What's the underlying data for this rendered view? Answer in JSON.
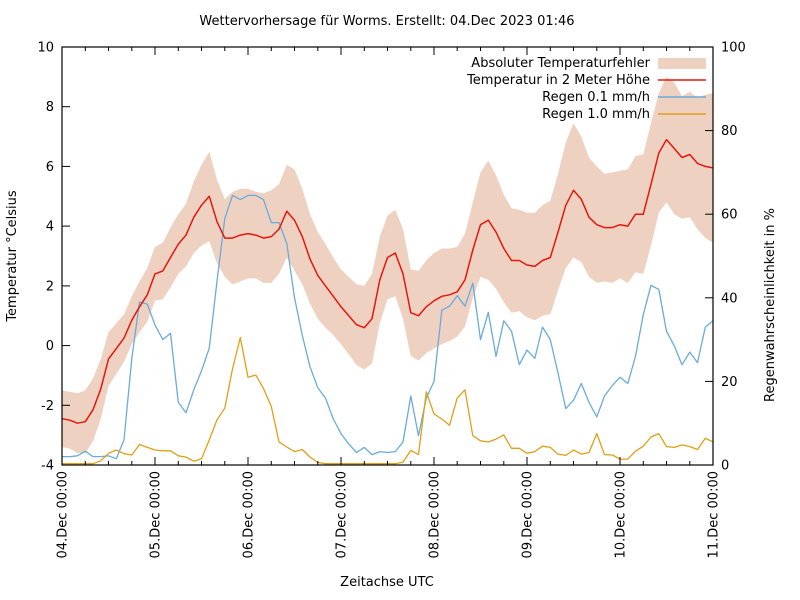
{
  "title": "Wettervorhersage für Worms. Erstellt: 04.Dec 2023 01:46",
  "colors": {
    "band": "#eed1c1",
    "temperature": "#e4180e",
    "rain01": "#6aabdc",
    "rain10": "#dfa018",
    "axis": "#000000",
    "background": "#ffffff"
  },
  "chart_data": {
    "type": "line",
    "title": "Wettervorhersage für Worms. Erstellt: 04.Dec 2023 01:46",
    "xlabel": "Zeitachse UTC",
    "ylabel": "Temperatur °Celsius",
    "y2label": "Regenwahrscheinlichkeit in %",
    "ylim": [
      -4,
      10
    ],
    "y2lim": [
      0,
      100
    ],
    "x_range_hours": [
      0,
      168
    ],
    "x_step_hours": 2,
    "x_major_tick_hours": 24,
    "x_minor_tick_hours": 6,
    "grid": false,
    "legend_position": "top-right-inside",
    "x_tick_labels": [
      "04.Dec 00:00",
      "05.Dec 00:00",
      "06.Dec 00:00",
      "07.Dec 00:00",
      "08.Dec 00:00",
      "09.Dec 00:00",
      "10.Dec 00:00",
      "11.Dec 00:00"
    ],
    "y_ticks": [
      -4,
      -2,
      0,
      2,
      4,
      6,
      8,
      10
    ],
    "y2_ticks": [
      0,
      20,
      40,
      60,
      80,
      100
    ],
    "legend": [
      {
        "label": "Absoluter Temperaturfehler",
        "sample": "band",
        "color": "#eed1c1"
      },
      {
        "label": "Temperatur in 2 Meter Höhe",
        "sample": "line",
        "color": "#e4180e"
      },
      {
        "label": "Regen 0.1 mm/h",
        "sample": "line",
        "color": "#6aabdc"
      },
      {
        "label": "Regen 1.0 mm/h",
        "sample": "line",
        "color": "#dfa018"
      }
    ],
    "series": [
      {
        "name": "Temperatur in 2 Meter Höhe",
        "axis": "y",
        "unit": "°C",
        "values": [
          -2.45,
          -2.5,
          -2.6,
          -2.55,
          -2.15,
          -1.45,
          -0.45,
          -0.1,
          0.25,
          0.85,
          1.3,
          1.7,
          2.4,
          2.5,
          2.95,
          3.4,
          3.7,
          4.3,
          4.7,
          5.0,
          4.15,
          3.6,
          3.6,
          3.7,
          3.75,
          3.7,
          3.6,
          3.65,
          3.9,
          4.5,
          4.2,
          3.65,
          2.9,
          2.35,
          2.0,
          1.65,
          1.3,
          1.0,
          0.7,
          0.6,
          0.9,
          2.2,
          2.95,
          3.1,
          2.4,
          1.1,
          1.0,
          1.3,
          1.5,
          1.65,
          1.7,
          1.8,
          2.2,
          3.2,
          4.05,
          4.2,
          3.8,
          3.25,
          2.85,
          2.85,
          2.7,
          2.65,
          2.85,
          2.95,
          3.8,
          4.7,
          5.2,
          4.9,
          4.3,
          4.05,
          3.95,
          3.95,
          4.05,
          4.0,
          4.4,
          4.4,
          5.4,
          6.45,
          6.9,
          6.6,
          6.3,
          6.4,
          6.1,
          6.0,
          5.95
        ]
      },
      {
        "name": "Absoluter Temperaturfehler (Halbbreite)",
        "axis": "y",
        "unit": "°C",
        "values": [
          0.95,
          0.95,
          1.0,
          1.05,
          1.05,
          1.0,
          0.9,
          0.85,
          0.8,
          0.8,
          0.85,
          0.9,
          0.9,
          0.95,
          1.0,
          1.0,
          1.05,
          1.2,
          1.35,
          1.5,
          1.4,
          1.3,
          1.55,
          1.55,
          1.5,
          1.45,
          1.5,
          1.55,
          1.5,
          1.55,
          1.7,
          1.6,
          1.5,
          1.45,
          1.4,
          1.3,
          1.25,
          1.3,
          1.35,
          1.4,
          1.5,
          1.45,
          1.4,
          1.45,
          1.5,
          1.45,
          1.5,
          1.55,
          1.6,
          1.6,
          1.55,
          1.5,
          1.55,
          1.6,
          1.75,
          2.0,
          1.9,
          1.8,
          1.75,
          1.7,
          1.75,
          1.8,
          1.85,
          1.9,
          1.95,
          2.1,
          2.25,
          2.1,
          2.0,
          1.95,
          1.8,
          1.85,
          1.8,
          1.9,
          1.95,
          2.0,
          2.05,
          2.0,
          2.1,
          2.2,
          2.05,
          2.1,
          2.2,
          2.4,
          2.5
        ]
      },
      {
        "name": "Regen 0.1 mm/h",
        "axis": "y2",
        "unit": "%",
        "values": [
          2,
          2,
          2.2,
          3.3,
          2,
          2,
          2.2,
          1.5,
          6,
          25.5,
          39,
          38.5,
          33.5,
          30,
          31.5,
          15,
          12.5,
          18,
          22.5,
          28,
          44,
          59,
          64.5,
          63.5,
          64.5,
          64.5,
          63.5,
          58,
          58,
          53,
          40,
          31,
          23.5,
          18.5,
          16,
          11,
          7.5,
          5,
          3,
          4.2,
          2.5,
          3.2,
          3,
          3.2,
          5.5,
          16.5,
          7,
          16,
          20,
          37,
          38,
          40.5,
          38,
          43.5,
          30,
          36.5,
          26,
          34.5,
          32,
          24,
          27.5,
          25.5,
          33,
          30,
          22,
          13.5,
          15.5,
          19.5,
          15,
          11.5,
          16.5,
          19,
          21,
          19.5,
          26,
          36,
          43,
          42,
          32,
          28.5,
          24,
          27,
          24.5,
          33,
          34.5
        ]
      },
      {
        "name": "Regen 1.0 mm/h",
        "axis": "y2",
        "unit": "%",
        "values": [
          0.3,
          0.3,
          0.3,
          0.3,
          0.3,
          1.0,
          2.8,
          3.6,
          2.7,
          2.4,
          4.9,
          4.2,
          3.6,
          3.4,
          3.4,
          2.2,
          1.9,
          0.9,
          1.5,
          6.0,
          10.8,
          13.6,
          23,
          30.5,
          21,
          21.5,
          18.3,
          14,
          5.5,
          4.3,
          3.2,
          3.7,
          1.9,
          0.6,
          0.3,
          0.3,
          0.3,
          0.3,
          0.3,
          0.3,
          0.3,
          0.3,
          0.3,
          0.3,
          0.7,
          3.5,
          2.5,
          17.5,
          12.2,
          11,
          9.5,
          16,
          18,
          7,
          5.8,
          5.5,
          6.2,
          7.2,
          4.0,
          4.0,
          2.8,
          3.2,
          4.5,
          4.2,
          2.6,
          2.3,
          3.6,
          2.6,
          3.0,
          7.5,
          2.5,
          2.4,
          1.4,
          1.4,
          3.3,
          4.5,
          6.7,
          7.5,
          4.4,
          4.2,
          4.8,
          4.4,
          3.7,
          6.4,
          5.5
        ]
      }
    ]
  }
}
